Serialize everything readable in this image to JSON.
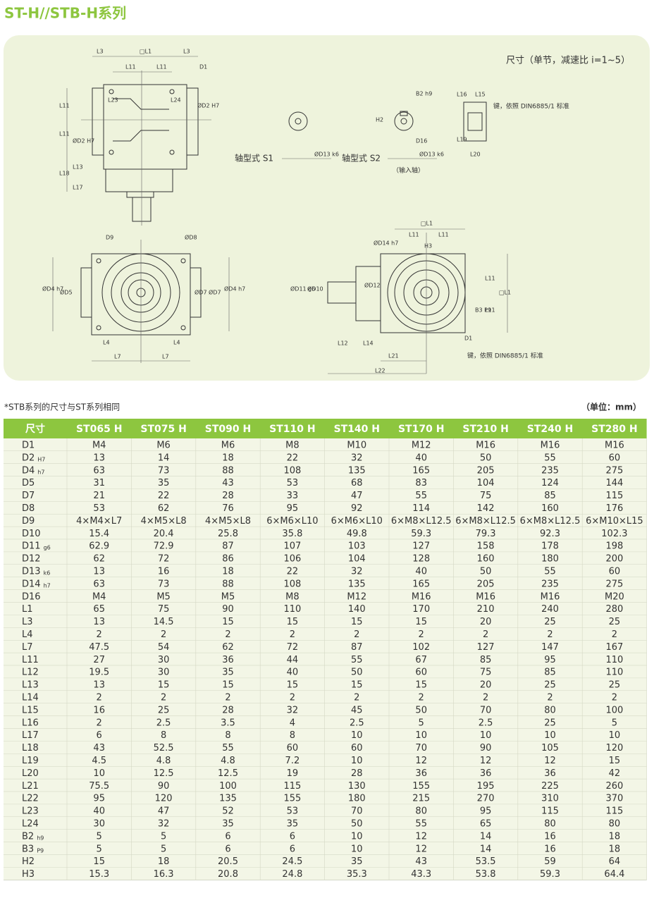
{
  "header": {
    "title": "ST-H//STB-H系列"
  },
  "drawing": {
    "labels": [
      "尺寸（单节，减速比 i=1~5）",
      "轴型式 S1",
      "轴型式 S2",
      "（输入轴）",
      "键，依照 DIN6885/1 标准",
      "键，依照 DIN6885/1 标准",
      "L3",
      "□L1",
      "L3",
      "L11",
      "L11",
      "D1",
      "L23",
      "L24",
      "L11",
      "ØD2 H7",
      "ØD2 H7",
      "L11",
      "L13",
      "L18",
      "L17",
      "ØD13 k6",
      "B2 h9",
      "H2",
      "D16",
      "ØD13 k6",
      "L16",
      "L15",
      "L19",
      "L20",
      "D9",
      "ØD8",
      "ØD4 h7",
      "ØD5",
      "ØD7",
      "ØD7",
      "ØD4 h7",
      "L4",
      "L4",
      "L7",
      "L7",
      "□L1",
      "L11",
      "L11",
      "ØD14 h7",
      "H3",
      "ØD11 g6",
      "ØD10",
      "ØD12",
      "L11",
      "□L1",
      "B3 P9",
      "L11",
      "L12",
      "L14",
      "D1",
      "L21",
      "L22"
    ]
  },
  "notes": {
    "left": "*STB系列的尺寸与ST系列相同",
    "right": "（单位：mm）"
  },
  "table": {
    "header": [
      "尺寸",
      "ST065 H",
      "ST075 H",
      "ST090 H",
      "ST110 H",
      "ST140 H",
      "ST170 H",
      "ST210 H",
      "ST240 H",
      "ST280 H"
    ],
    "rows": [
      {
        "name": "D1",
        "values": [
          "M4",
          "M6",
          "M6",
          "M8",
          "M10",
          "M12",
          "M16",
          "M16",
          "M16"
        ]
      },
      {
        "name": "D2",
        "sub": "H7",
        "values": [
          13,
          14,
          18,
          22,
          32,
          40,
          50,
          55,
          60
        ]
      },
      {
        "name": "D4",
        "sub": "h7",
        "values": [
          63,
          73,
          88,
          108,
          135,
          165,
          205,
          235,
          275
        ]
      },
      {
        "name": "D5",
        "values": [
          31,
          35,
          43,
          53,
          68,
          83,
          104,
          124,
          144
        ]
      },
      {
        "name": "D7",
        "values": [
          21,
          22,
          28,
          33,
          47,
          55,
          75,
          85,
          115
        ]
      },
      {
        "name": "D8",
        "values": [
          53,
          62,
          76,
          95,
          92,
          114,
          142,
          160,
          176
        ]
      },
      {
        "name": "D9",
        "values": [
          "4×M4×L7",
          "4×M5×L8",
          "4×M5×L8",
          "6×M6×L10",
          "6×M6×L10",
          "6×M8×L12.5",
          "6×M8×L12.5",
          "6×M8×L12.5",
          "6×M10×L15"
        ]
      },
      {
        "name": "D10",
        "values": [
          15.4,
          20.4,
          25.8,
          35.8,
          49.8,
          59.3,
          79.3,
          92.3,
          102.3
        ]
      },
      {
        "name": "D11",
        "sub": "g6",
        "values": [
          62.9,
          72.9,
          87,
          107,
          103,
          127,
          158,
          178,
          198
        ]
      },
      {
        "name": "D12",
        "values": [
          62,
          72,
          86,
          106,
          104,
          128,
          160,
          180,
          200
        ]
      },
      {
        "name": "D13",
        "sub": "k6",
        "values": [
          13,
          16,
          18,
          22,
          32,
          40,
          50,
          55,
          60
        ]
      },
      {
        "name": "D14",
        "sub": "h7",
        "values": [
          63,
          73,
          88,
          108,
          135,
          165,
          205,
          235,
          275
        ]
      },
      {
        "name": "D16",
        "values": [
          "M4",
          "M5",
          "M5",
          "M8",
          "M12",
          "M16",
          "M16",
          "M16",
          "M20"
        ]
      },
      {
        "name": "L1",
        "values": [
          65,
          75,
          90,
          110,
          140,
          170,
          210,
          240,
          280
        ]
      },
      {
        "name": "L3",
        "values": [
          13,
          14.5,
          15,
          15,
          15,
          15,
          20,
          25,
          25
        ]
      },
      {
        "name": "L4",
        "values": [
          2,
          2,
          2,
          2,
          2,
          2,
          2,
          2,
          2
        ]
      },
      {
        "name": "L7",
        "values": [
          47.5,
          54,
          62,
          72,
          87,
          102,
          127,
          147,
          167
        ]
      },
      {
        "name": "L11",
        "values": [
          27,
          30,
          36,
          44,
          55,
          67,
          85,
          95,
          110
        ]
      },
      {
        "name": "L12",
        "values": [
          19.5,
          30,
          35,
          40,
          50,
          60,
          75,
          85,
          110
        ]
      },
      {
        "name": "L13",
        "values": [
          13,
          15,
          15,
          15,
          15,
          15,
          20,
          25,
          25
        ]
      },
      {
        "name": "L14",
        "values": [
          2,
          2,
          2,
          2,
          2,
          2,
          2,
          2,
          2
        ]
      },
      {
        "name": "L15",
        "values": [
          16,
          25,
          28,
          32,
          45,
          50,
          70,
          80,
          100
        ]
      },
      {
        "name": "L16",
        "values": [
          2,
          2.5,
          3.5,
          4,
          2.5,
          5,
          2.5,
          25,
          5
        ]
      },
      {
        "name": "L17",
        "values": [
          6,
          8,
          8,
          8,
          10,
          10,
          10,
          10,
          10
        ]
      },
      {
        "name": "L18",
        "values": [
          43,
          52.5,
          55,
          60,
          60,
          70,
          90,
          105,
          120
        ]
      },
      {
        "name": "L19",
        "values": [
          4.5,
          4.8,
          4.8,
          7.2,
          10,
          12,
          12,
          12,
          15
        ]
      },
      {
        "name": "L20",
        "values": [
          10,
          12.5,
          12.5,
          19,
          28,
          36,
          36,
          36,
          42
        ]
      },
      {
        "name": "L21",
        "values": [
          75.5,
          90,
          100,
          115,
          130,
          155,
          195,
          225,
          260
        ]
      },
      {
        "name": "L22",
        "values": [
          95,
          120,
          135,
          155,
          180,
          215,
          270,
          310,
          370
        ]
      },
      {
        "name": "L23",
        "values": [
          40,
          47,
          52,
          53,
          70,
          80,
          95,
          115,
          115
        ]
      },
      {
        "name": "L24",
        "values": [
          30,
          32,
          35,
          35,
          50,
          55,
          65,
          80,
          80
        ]
      },
      {
        "name": "B2",
        "sub": "h9",
        "values": [
          5,
          5,
          6,
          6,
          10,
          12,
          14,
          16,
          18
        ]
      },
      {
        "name": "B3",
        "sub": "P9",
        "values": [
          5,
          5,
          6,
          6,
          10,
          12,
          14,
          16,
          18
        ]
      },
      {
        "name": "H2",
        "values": [
          15,
          18,
          20.5,
          24.5,
          35,
          43,
          53.5,
          59,
          64
        ]
      },
      {
        "name": "H3",
        "values": [
          15.3,
          16.3,
          20.8,
          24.8,
          35.3,
          43.3,
          53.8,
          59.3,
          64.4
        ]
      }
    ]
  }
}
